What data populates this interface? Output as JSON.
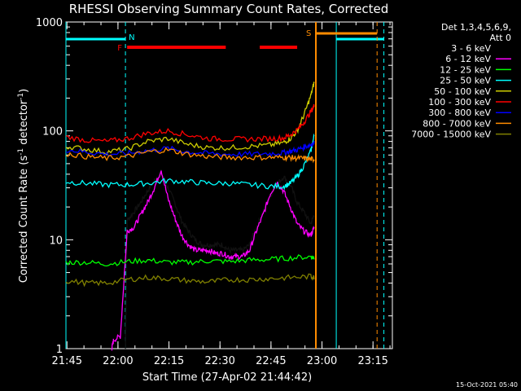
{
  "chart_data": {
    "type": "line",
    "title": "RHESSI Observing Summary Count Rates, Corrected",
    "xlabel": "Start Time (27-Apr-02 21:44:42)",
    "ylabel": "Corrected Count Rate (s⁻¹ detector⁻¹)",
    "y_scale": "log",
    "ylim": [
      1,
      1000
    ],
    "xlim_minutes": [
      0,
      96
    ],
    "x_ticks": [
      "21:45",
      "22:00",
      "22:15",
      "22:30",
      "22:45",
      "23:00",
      "23:15"
    ],
    "y_ticks": [
      "1",
      "10",
      "100",
      "1000"
    ],
    "detector_info": [
      "Det 1,3,4,5,6,9,",
      "Att 0"
    ],
    "legend_position": "top-right",
    "footer_date": "15-Oct-2021 05:40",
    "flags": {
      "night_label": "N",
      "flare_label": "F",
      "saa_label": "S",
      "night_minutes": [
        [
          0,
          17.5
        ],
        [
          79.5,
          93.5
        ]
      ],
      "flare_minutes": [
        [
          18,
          47
        ],
        [
          57,
          68
        ]
      ],
      "saa_minutes": [
        [
          73.5,
          91.5
        ]
      ],
      "night_color": "#00ffff",
      "flare_color": "#ff0000",
      "saa_color": "#ff8c00"
    },
    "series": [
      {
        "name": "3 - 6 keV",
        "color": "#000000",
        "x": [
          17.5,
          18,
          20,
          22,
          24,
          26,
          28,
          30,
          32,
          34,
          36,
          38,
          40,
          42,
          44,
          46,
          48,
          50,
          52,
          54,
          56,
          58,
          60,
          62,
          64,
          66,
          68,
          70,
          72,
          73
        ],
        "y": [
          1.0,
          15,
          18,
          22,
          28,
          35,
          42,
          30,
          22,
          15,
          12,
          10,
          9,
          9,
          9,
          9,
          8,
          8,
          8,
          9,
          13,
          18,
          25,
          32,
          38,
          32,
          22,
          18,
          14,
          17
        ]
      },
      {
        "name": "6 - 12 keV",
        "color": "#ff00ff",
        "x": [
          13.5,
          14,
          16,
          18,
          20,
          22,
          24,
          26,
          28,
          30,
          32,
          34,
          36,
          38,
          40,
          42,
          44,
          46,
          48,
          50,
          52,
          54,
          56,
          58,
          60,
          62,
          64,
          66,
          68,
          70,
          72,
          73
        ],
        "y": [
          1.0,
          1.2,
          1.3,
          12,
          13,
          17,
          22,
          30,
          44,
          24,
          16,
          11,
          9,
          8,
          8,
          8,
          7.5,
          7.5,
          7,
          7,
          7,
          8,
          12,
          17,
          26,
          34,
          28,
          20,
          14,
          12,
          11,
          13
        ]
      },
      {
        "name": "12 - 25 keV",
        "color": "#00ff00",
        "x": [
          0,
          6,
          12,
          18,
          24,
          30,
          36,
          42,
          48,
          54,
          60,
          66,
          72,
          73
        ],
        "y": [
          6.2,
          6.2,
          6.0,
          6.3,
          6.5,
          6.2,
          6.2,
          6.4,
          6.3,
          6.5,
          6.6,
          6.8,
          7.0,
          6.8
        ]
      },
      {
        "name": "25 - 50 keV",
        "color": "#00ffff",
        "x": [
          0,
          6,
          12,
          18,
          24,
          30,
          36,
          42,
          48,
          54,
          60,
          64,
          66,
          68,
          70,
          72,
          73
        ],
        "y": [
          34,
          33,
          32,
          32,
          33,
          35,
          34,
          33,
          33,
          32,
          31,
          31,
          33,
          38,
          48,
          65,
          90
        ]
      },
      {
        "name": "50 - 100 keV",
        "color": "#cccc00",
        "x": [
          0,
          6,
          12,
          18,
          24,
          30,
          36,
          42,
          48,
          54,
          60,
          64,
          66,
          68,
          70,
          72,
          73
        ],
        "y": [
          72,
          68,
          64,
          68,
          80,
          85,
          75,
          70,
          70,
          72,
          74,
          78,
          85,
          100,
          140,
          210,
          280
        ]
      },
      {
        "name": "100 - 300 keV",
        "color": "#ff0000",
        "x": [
          0,
          6,
          12,
          18,
          24,
          30,
          36,
          42,
          48,
          54,
          60,
          64,
          66,
          68,
          70,
          72,
          73
        ],
        "y": [
          88,
          82,
          80,
          85,
          95,
          100,
          92,
          85,
          84,
          84,
          85,
          86,
          92,
          102,
          120,
          150,
          170
        ]
      },
      {
        "name": "300 - 800 keV",
        "color": "#0000ff",
        "x": [
          0,
          6,
          12,
          18,
          24,
          30,
          36,
          42,
          48,
          54,
          60,
          64,
          66,
          68,
          70,
          72,
          73
        ],
        "y": [
          67,
          64,
          61,
          62,
          66,
          69,
          64,
          62,
          61,
          61,
          62,
          63,
          65,
          67,
          71,
          75,
          77
        ]
      },
      {
        "name": "800 - 7000 keV",
        "color": "#ff8c00",
        "x": [
          0,
          6,
          12,
          18,
          24,
          30,
          36,
          42,
          48,
          54,
          60,
          64,
          66,
          68,
          70,
          72,
          73
        ],
        "y": [
          62,
          58,
          56,
          58,
          64,
          67,
          61,
          58,
          57,
          57,
          57,
          57,
          57,
          56,
          56,
          55,
          55
        ]
      },
      {
        "name": "7000 - 15000 keV",
        "color": "#808000",
        "x": [
          0,
          6,
          12,
          18,
          24,
          30,
          36,
          42,
          48,
          54,
          60,
          66,
          72,
          73
        ],
        "y": [
          4.2,
          4.0,
          4.0,
          4.3,
          4.5,
          4.4,
          4.2,
          4.1,
          4.3,
          4.3,
          4.4,
          4.5,
          4.6,
          4.5
        ]
      }
    ]
  }
}
